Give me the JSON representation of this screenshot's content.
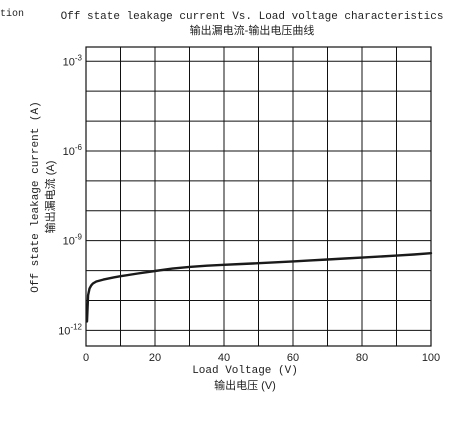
{
  "corner_text": "tion",
  "chart_data": {
    "type": "line",
    "title": "Off state leakage current Vs. Load voltage characteristics",
    "subtitle": "输出漏电流-输出电压曲线",
    "xlabel": "Load Voltage (V)",
    "xlabel_cn": "输出电压 (V)",
    "ylabel": "Off state leakage current (A)",
    "ylabel_cn": "输出漏电流 (A)",
    "x_scale": "linear",
    "y_scale": "log",
    "xlim": [
      0,
      100
    ],
    "ylim": [
      3e-13,
      0.003
    ],
    "grid": true,
    "x_ticks": [
      0,
      20,
      40,
      60,
      80,
      100
    ],
    "y_ticks": [
      {
        "value": 1e-12,
        "base": "10",
        "exp": "-12"
      },
      {
        "value": 1e-09,
        "base": "10",
        "exp": "-9"
      },
      {
        "value": 1e-06,
        "base": "10",
        "exp": "-6"
      },
      {
        "value": 0.001,
        "base": "10",
        "exp": "-3"
      }
    ],
    "series": [
      {
        "x": [
          0.3,
          0.6,
          1,
          1.5,
          2,
          3,
          5,
          8,
          10,
          15,
          20,
          25,
          30,
          35,
          40,
          45,
          50,
          55,
          60,
          65,
          70,
          75,
          80,
          85,
          90,
          95,
          100
        ],
        "y": [
          2e-12,
          1.5e-11,
          2.5e-11,
          3.2e-11,
          3.7e-11,
          4.3e-11,
          5e-11,
          5.9e-11,
          6.5e-11,
          8e-11,
          9.7e-11,
          1.16e-10,
          1.33e-10,
          1.45e-10,
          1.56e-10,
          1.66e-10,
          1.77e-10,
          1.89e-10,
          2.02e-10,
          2.18e-10,
          2.35e-10,
          2.53e-10,
          2.72e-10,
          2.93e-10,
          3.16e-10,
          3.45e-10,
          3.8e-10
        ]
      }
    ]
  }
}
